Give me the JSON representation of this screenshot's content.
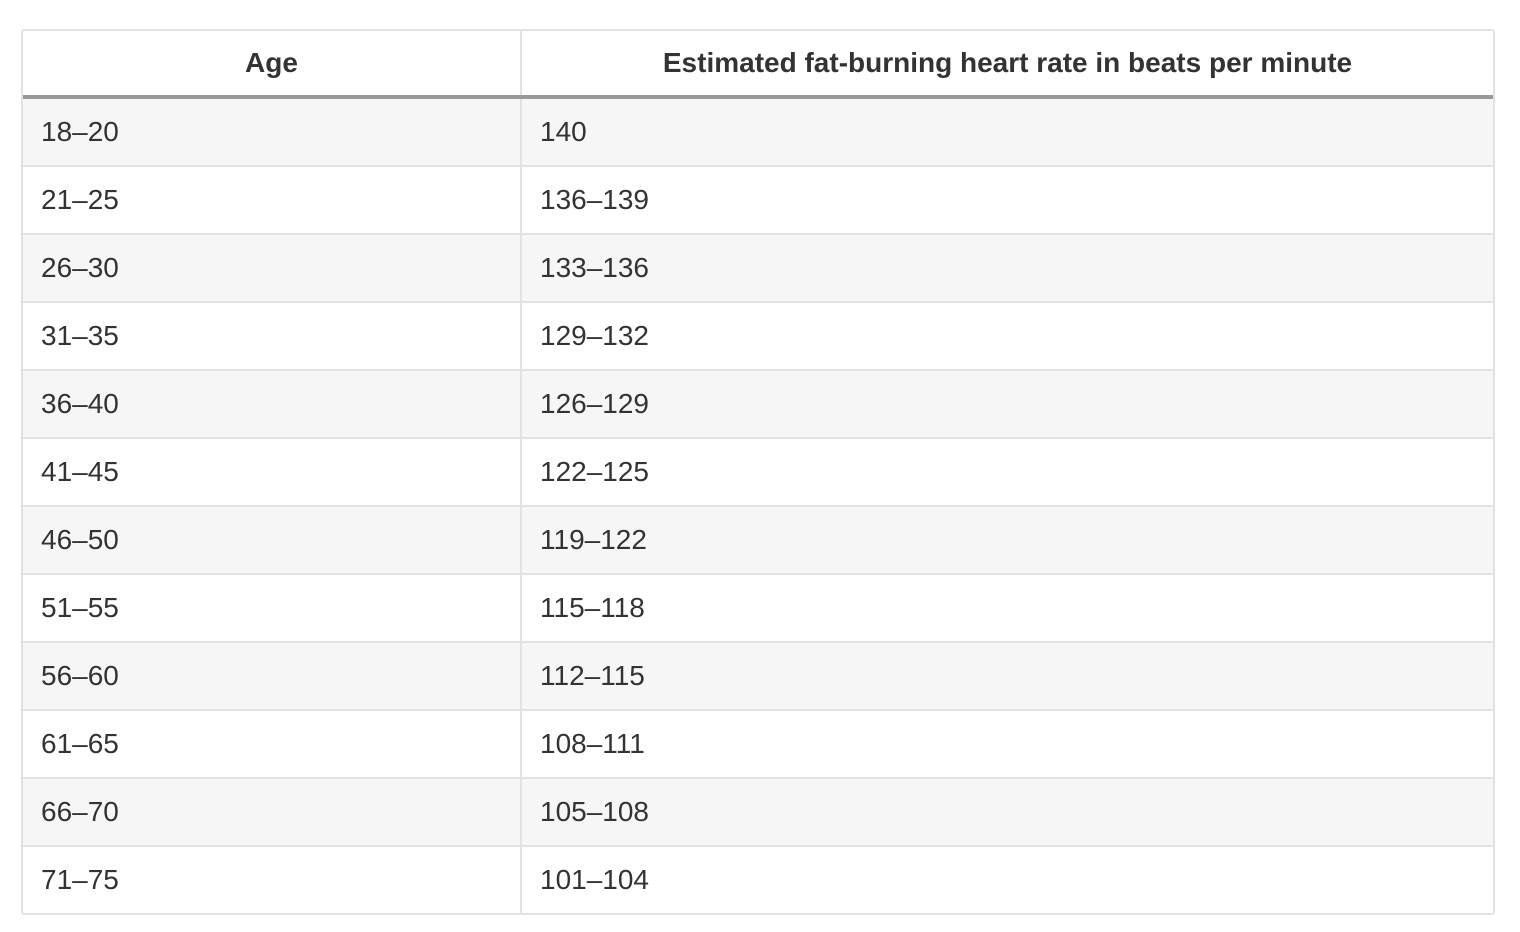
{
  "table": {
    "header": [
      "Age",
      "Estimated fat-burning heart rate in beats per minute"
    ],
    "rows": [
      [
        "18–20",
        "140"
      ],
      [
        "21–25",
        "136–139"
      ],
      [
        "26–30",
        "133–136"
      ],
      [
        "31–35",
        "129–132"
      ],
      [
        "36–40",
        "126–129"
      ],
      [
        "41–45",
        "122–125"
      ],
      [
        "46–50",
        "119–122"
      ],
      [
        "51–55",
        "115–118"
      ],
      [
        "56–60",
        "112–115"
      ],
      [
        "61–65",
        "108–111"
      ],
      [
        "66–70",
        "105–108"
      ],
      [
        "71–75",
        "101–104"
      ]
    ]
  }
}
